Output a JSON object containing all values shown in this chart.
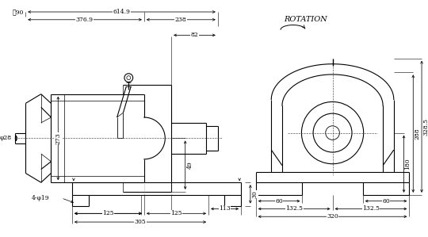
{
  "bg_color": "#ffffff",
  "fig_width": 5.4,
  "fig_height": 2.99,
  "dpi": 100,
  "rotation_text": "ROTATION",
  "d614": "614.9",
  "d376": "376.9",
  "d238": "238",
  "d82": "82",
  "d90": "✨90",
  "d28": "φ28",
  "d273": "273",
  "d49": "49",
  "holes": "4-φ19",
  "d125a": "125",
  "d125b": "125",
  "d113": "113",
  "d305": "305",
  "d30": "30",
  "d328": "328.5",
  "d288": "288",
  "d180": "180",
  "d60a": "60",
  "d60b": "60",
  "d132a": "132.5",
  "d132b": "132.5",
  "d320": "320"
}
